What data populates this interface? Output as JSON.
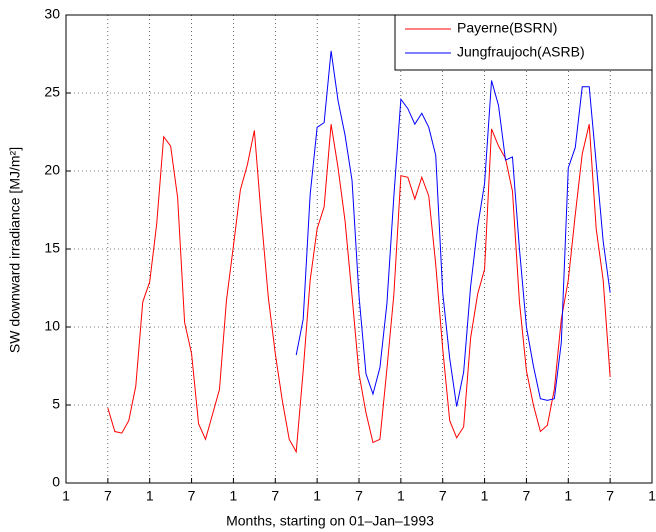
{
  "chart_data": {
    "type": "line",
    "x_label": "Months, starting on 01–Jan–1993",
    "y_label": "SW downward irradiance [MJ/m²]",
    "xlim": [
      1,
      85
    ],
    "ylim": [
      0,
      30
    ],
    "xticks": [
      {
        "value": 1,
        "label": "1"
      },
      {
        "value": 7,
        "label": "7"
      },
      {
        "value": 13,
        "label": "1"
      },
      {
        "value": 19,
        "label": "7"
      },
      {
        "value": 25,
        "label": "1"
      },
      {
        "value": 31,
        "label": "7"
      },
      {
        "value": 37,
        "label": "1"
      },
      {
        "value": 43,
        "label": "7"
      },
      {
        "value": 49,
        "label": "1"
      },
      {
        "value": 55,
        "label": "7"
      },
      {
        "value": 61,
        "label": "1"
      },
      {
        "value": 67,
        "label": "7"
      },
      {
        "value": 73,
        "label": "1"
      },
      {
        "value": 79,
        "label": "7"
      },
      {
        "value": 85,
        "label": "1"
      }
    ],
    "yticks": [
      0,
      5,
      10,
      15,
      20,
      25,
      30
    ],
    "grid": true,
    "legend": "top-right",
    "series": [
      {
        "name": "Payerne(BSRN)",
        "color": "#ff0000",
        "x": [
          7,
          8,
          9,
          10,
          11,
          12,
          13,
          14,
          15,
          16,
          17,
          18,
          19,
          20,
          21,
          22,
          23,
          24,
          25,
          26,
          27,
          28,
          29,
          30,
          31,
          32,
          33,
          34,
          35,
          36,
          37,
          38,
          39,
          40,
          41,
          42,
          43,
          44,
          45,
          46,
          47,
          48,
          49,
          50,
          51,
          52,
          53,
          54,
          55,
          56,
          57,
          58,
          59,
          60,
          61,
          62,
          63,
          64,
          65,
          66,
          67,
          68,
          69,
          70,
          71,
          72,
          73,
          74,
          75,
          76,
          77,
          78,
          79
        ],
        "values": [
          4.8,
          3.3,
          3.2,
          4.0,
          6.2,
          11.6,
          12.9,
          16.6,
          22.2,
          21.6,
          18.3,
          10.3,
          8.3,
          3.8,
          2.8,
          4.4,
          6.0,
          11.7,
          15.2,
          18.8,
          20.4,
          22.6,
          17.0,
          11.9,
          8.3,
          5.3,
          2.8,
          2.0,
          7.2,
          13.0,
          16.3,
          17.7,
          23.0,
          20.2,
          16.8,
          12.0,
          7.0,
          4.5,
          2.6,
          2.8,
          7.3,
          12.1,
          19.7,
          19.6,
          18.2,
          19.6,
          18.4,
          14.0,
          8.6,
          4.0,
          2.9,
          3.6,
          9.3,
          12.1,
          13.7,
          22.7,
          21.6,
          20.8,
          18.7,
          11.6,
          7.2,
          5.0,
          3.3,
          3.7,
          6.0,
          10.5,
          13.0,
          17.2,
          21.1,
          23.0,
          16.3,
          13.0,
          6.8
        ]
      },
      {
        "name": "Jungfraujoch(ASRB)",
        "color": "#0000ff",
        "x": [
          34,
          35,
          36,
          37,
          38,
          39,
          40,
          41,
          42,
          43,
          44,
          45,
          46,
          47,
          48,
          49,
          50,
          51,
          52,
          53,
          54,
          55,
          56,
          57,
          58,
          59,
          60,
          61,
          62,
          63,
          64,
          65,
          66,
          67,
          68,
          69,
          70,
          71,
          72,
          73,
          74,
          75,
          76,
          77,
          78,
          79
        ],
        "values": [
          8.2,
          10.5,
          18.5,
          22.8,
          23.1,
          27.7,
          24.5,
          22.3,
          19.4,
          12.0,
          7.0,
          5.7,
          7.4,
          11.5,
          18.4,
          24.6,
          24.0,
          23.0,
          23.7,
          22.8,
          21.0,
          12.2,
          8.0,
          4.9,
          7.1,
          12.6,
          16.4,
          19.2,
          25.8,
          24.2,
          20.7,
          20.9,
          15.0,
          10.0,
          7.5,
          5.4,
          5.3,
          5.4,
          9.0,
          20.2,
          21.5,
          25.4,
          25.4,
          20.5,
          15.5,
          12.2
        ]
      }
    ]
  }
}
